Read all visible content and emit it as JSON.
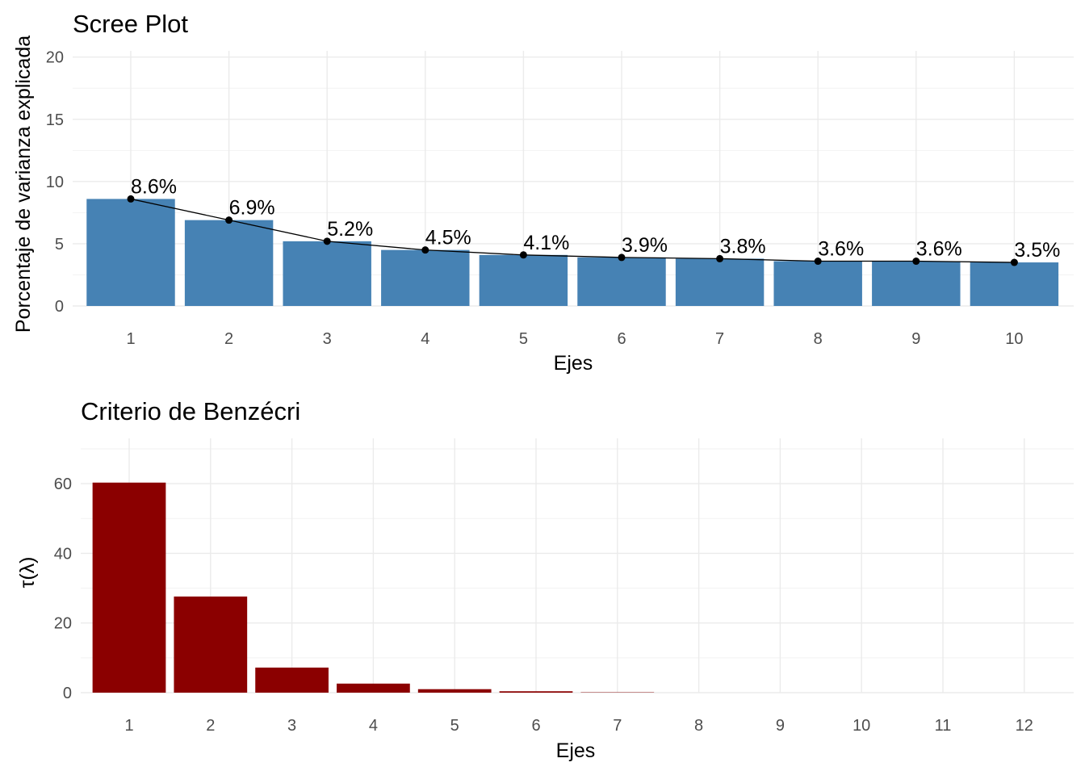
{
  "chart_data": [
    {
      "type": "bar",
      "title": "Scree Plot",
      "xlabel": "Ejes",
      "ylabel": "Porcentaje de varianza explicada",
      "categories": [
        "1",
        "2",
        "3",
        "4",
        "5",
        "6",
        "7",
        "8",
        "9",
        "10"
      ],
      "values": [
        8.6,
        6.9,
        5.2,
        4.5,
        4.1,
        3.9,
        3.8,
        3.6,
        3.6,
        3.5
      ],
      "data_labels": [
        "8.6%",
        "6.9%",
        "5.2%",
        "4.5%",
        "4.1%",
        "3.9%",
        "3.8%",
        "3.6%",
        "3.6%",
        "3.5%"
      ],
      "overlay_line": true,
      "yticks": [
        0,
        5,
        10,
        15,
        20
      ],
      "ylim": [
        0,
        20.5
      ],
      "grid": true,
      "bar_color": "#4682B4",
      "line_color": "#000000"
    },
    {
      "type": "bar",
      "title": "Criterio de Benzécri",
      "xlabel": "Ejes",
      "ylabel": "τ(λ)",
      "categories": [
        "1",
        "2",
        "3",
        "4",
        "5",
        "6",
        "7",
        "8",
        "9",
        "10",
        "11",
        "12"
      ],
      "values": [
        60.3,
        27.6,
        7.2,
        2.6,
        1.0,
        0.4,
        0.1,
        0,
        0,
        0,
        0,
        0
      ],
      "yticks": [
        0,
        20,
        40,
        60
      ],
      "ylim": [
        0,
        73
      ],
      "grid": true,
      "bar_color": "#8B0000"
    }
  ]
}
